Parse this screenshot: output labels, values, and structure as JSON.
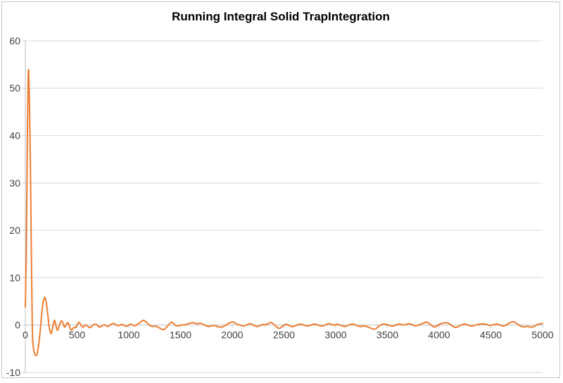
{
  "chart_data": {
    "type": "line",
    "title": "Running Integral Solid TrapIntegration",
    "xlabel": "",
    "ylabel": "",
    "xlim": [
      0,
      5000
    ],
    "ylim": [
      -10,
      60
    ],
    "xticks": [
      0,
      500,
      1000,
      1500,
      2000,
      2500,
      3000,
      3500,
      4000,
      4500,
      5000
    ],
    "yticks": [
      -10,
      0,
      10,
      20,
      30,
      40,
      50,
      60
    ],
    "grid": "horizontal",
    "legend": "none",
    "colors": {
      "line": "#ED7D31",
      "gridline": "#D9D9D9",
      "axis": "#BFBFBF",
      "tick_label": "#404040",
      "title": "#000000",
      "background": "#FFFFFF",
      "frame": "#C9C9C9"
    },
    "series": [
      {
        "name": "Running Integral",
        "color": "#ED7D31",
        "points": [
          [
            0,
            3.8
          ],
          [
            8,
            14
          ],
          [
            14,
            27
          ],
          [
            20,
            40
          ],
          [
            25,
            49
          ],
          [
            30,
            53.8
          ],
          [
            35,
            52
          ],
          [
            42,
            44
          ],
          [
            50,
            31
          ],
          [
            58,
            16
          ],
          [
            64,
            5
          ],
          [
            70,
            -2.5
          ],
          [
            78,
            -4.8
          ],
          [
            88,
            -6.0
          ],
          [
            100,
            -6.4
          ],
          [
            112,
            -6.2
          ],
          [
            122,
            -5.2
          ],
          [
            132,
            -3.6
          ],
          [
            142,
            -1.6
          ],
          [
            152,
            0.8
          ],
          [
            162,
            3.0
          ],
          [
            172,
            4.8
          ],
          [
            182,
            5.7
          ],
          [
            190,
            5.8
          ],
          [
            200,
            5.0
          ],
          [
            210,
            3.5
          ],
          [
            220,
            1.6
          ],
          [
            230,
            -0.3
          ],
          [
            240,
            -1.4
          ],
          [
            250,
            -1.8
          ],
          [
            260,
            -1.1
          ],
          [
            270,
            0.1
          ],
          [
            280,
            1.0
          ],
          [
            290,
            0.6
          ],
          [
            300,
            -0.5
          ],
          [
            310,
            -1.1
          ],
          [
            320,
            -0.7
          ],
          [
            332,
            0.2
          ],
          [
            342,
            0.7
          ],
          [
            352,
            0.9
          ],
          [
            364,
            0.4
          ],
          [
            378,
            -0.4
          ],
          [
            392,
            -0.1
          ],
          [
            405,
            0.5
          ],
          [
            418,
            0.3
          ],
          [
            432,
            -0.6
          ],
          [
            445,
            -1.1
          ],
          [
            458,
            -0.8
          ],
          [
            472,
            -0.5
          ],
          [
            488,
            -0.5
          ],
          [
            505,
            0.2
          ],
          [
            520,
            0.6
          ],
          [
            538,
            0.0
          ],
          [
            557,
            -0.45
          ],
          [
            580,
            0.0
          ],
          [
            600,
            -0.2
          ],
          [
            625,
            -0.55
          ],
          [
            650,
            -0.1
          ],
          [
            675,
            0.2
          ],
          [
            695,
            0.0
          ],
          [
            716,
            -0.45
          ],
          [
            740,
            -0.2
          ],
          [
            766,
            0.05
          ],
          [
            796,
            -0.3
          ],
          [
            825,
            0.1
          ],
          [
            852,
            0.35
          ],
          [
            875,
            0.1
          ],
          [
            898,
            -0.15
          ],
          [
            915,
            0.0
          ],
          [
            932,
            0.15
          ],
          [
            955,
            -0.1
          ],
          [
            977,
            -0.25
          ],
          [
            1000,
            0.0
          ],
          [
            1023,
            0.2
          ],
          [
            1040,
            0.0
          ],
          [
            1057,
            -0.15
          ],
          [
            1080,
            0.1
          ],
          [
            1105,
            0.5
          ],
          [
            1130,
            0.9
          ],
          [
            1148,
            1.0
          ],
          [
            1170,
            0.6
          ],
          [
            1195,
            0.1
          ],
          [
            1215,
            -0.2
          ],
          [
            1235,
            -0.3
          ],
          [
            1255,
            -0.2
          ],
          [
            1275,
            -0.35
          ],
          [
            1295,
            -0.6
          ],
          [
            1315,
            -0.85
          ],
          [
            1335,
            -0.95
          ],
          [
            1355,
            -0.7
          ],
          [
            1375,
            -0.2
          ],
          [
            1395,
            0.35
          ],
          [
            1412,
            0.6
          ],
          [
            1430,
            0.4
          ],
          [
            1450,
            0.0
          ],
          [
            1468,
            -0.2
          ],
          [
            1488,
            -0.1
          ],
          [
            1510,
            0.05
          ],
          [
            1532,
            0.0
          ],
          [
            1555,
            0.15
          ],
          [
            1578,
            0.3
          ],
          [
            1600,
            0.45
          ],
          [
            1623,
            0.5
          ],
          [
            1645,
            0.35
          ],
          [
            1668,
            0.3
          ],
          [
            1690,
            0.4
          ],
          [
            1712,
            0.25
          ],
          [
            1735,
            0.0
          ],
          [
            1758,
            -0.25
          ],
          [
            1780,
            -0.3
          ],
          [
            1802,
            -0.15
          ],
          [
            1825,
            -0.1
          ],
          [
            1848,
            -0.25
          ],
          [
            1870,
            -0.4
          ],
          [
            1892,
            -0.45
          ],
          [
            1912,
            -0.35
          ],
          [
            1932,
            -0.1
          ],
          [
            1955,
            0.25
          ],
          [
            1978,
            0.5
          ],
          [
            2000,
            0.65
          ],
          [
            2015,
            0.6
          ],
          [
            2035,
            0.35
          ],
          [
            2055,
            0.1
          ],
          [
            2075,
            0.0
          ],
          [
            2095,
            -0.15
          ],
          [
            2115,
            -0.2
          ],
          [
            2135,
            0.0
          ],
          [
            2155,
            0.2
          ],
          [
            2175,
            0.3
          ],
          [
            2195,
            0.1
          ],
          [
            2215,
            -0.1
          ],
          [
            2235,
            -0.3
          ],
          [
            2255,
            -0.25
          ],
          [
            2275,
            -0.05
          ],
          [
            2295,
            0.1
          ],
          [
            2315,
            0.05
          ],
          [
            2335,
            0.2
          ],
          [
            2355,
            0.4
          ],
          [
            2374,
            0.55
          ],
          [
            2392,
            0.35
          ],
          [
            2412,
            -0.05
          ],
          [
            2432,
            -0.45
          ],
          [
            2452,
            -0.7
          ],
          [
            2472,
            -0.5
          ],
          [
            2492,
            -0.15
          ],
          [
            2512,
            0.15
          ],
          [
            2532,
            0.1
          ],
          [
            2552,
            -0.1
          ],
          [
            2572,
            -0.3
          ],
          [
            2592,
            -0.3
          ],
          [
            2615,
            -0.1
          ],
          [
            2638,
            0.1
          ],
          [
            2660,
            0.2
          ],
          [
            2682,
            0.1
          ],
          [
            2705,
            -0.1
          ],
          [
            2728,
            -0.2
          ],
          [
            2750,
            -0.1
          ],
          [
            2772,
            0.1
          ],
          [
            2795,
            0.2
          ],
          [
            2818,
            0.1
          ],
          [
            2840,
            -0.1
          ],
          [
            2862,
            -0.2
          ],
          [
            2885,
            -0.1
          ],
          [
            2908,
            0.1
          ],
          [
            2930,
            0.3
          ],
          [
            2952,
            0.2
          ],
          [
            2975,
            0.0
          ],
          [
            2998,
            0.1
          ],
          [
            3020,
            0.15
          ],
          [
            3042,
            0.0
          ],
          [
            3065,
            -0.2
          ],
          [
            3088,
            -0.3
          ],
          [
            3110,
            -0.15
          ],
          [
            3132,
            0.05
          ],
          [
            3155,
            0.2
          ],
          [
            3178,
            0.15
          ],
          [
            3200,
            -0.05
          ],
          [
            3222,
            -0.25
          ],
          [
            3245,
            -0.3
          ],
          [
            3268,
            -0.2
          ],
          [
            3290,
            -0.25
          ],
          [
            3312,
            -0.4
          ],
          [
            3335,
            -0.6
          ],
          [
            3358,
            -0.8
          ],
          [
            3378,
            -0.85
          ],
          [
            3398,
            -0.6
          ],
          [
            3418,
            -0.25
          ],
          [
            3438,
            0.05
          ],
          [
            3458,
            0.2
          ],
          [
            3480,
            0.2
          ],
          [
            3502,
            0.05
          ],
          [
            3525,
            -0.1
          ],
          [
            3548,
            -0.2
          ],
          [
            3570,
            -0.1
          ],
          [
            3592,
            0.1
          ],
          [
            3615,
            0.2
          ],
          [
            3638,
            0.1
          ],
          [
            3660,
            0.0
          ],
          [
            3682,
            0.15
          ],
          [
            3705,
            0.3
          ],
          [
            3728,
            0.2
          ],
          [
            3750,
            0.0
          ],
          [
            3772,
            -0.15
          ],
          [
            3795,
            -0.05
          ],
          [
            3818,
            0.15
          ],
          [
            3840,
            0.35
          ],
          [
            3862,
            0.55
          ],
          [
            3880,
            0.6
          ],
          [
            3900,
            0.4
          ],
          [
            3920,
            0.05
          ],
          [
            3940,
            -0.3
          ],
          [
            3958,
            -0.4
          ],
          [
            3978,
            -0.2
          ],
          [
            3998,
            0.1
          ],
          [
            4020,
            0.3
          ],
          [
            4042,
            0.4
          ],
          [
            4062,
            0.5
          ],
          [
            4080,
            0.45
          ],
          [
            4100,
            0.25
          ],
          [
            4120,
            -0.05
          ],
          [
            4140,
            -0.35
          ],
          [
            4158,
            -0.5
          ],
          [
            4178,
            -0.4
          ],
          [
            4198,
            -0.15
          ],
          [
            4218,
            0.05
          ],
          [
            4240,
            0.2
          ],
          [
            4262,
            0.15
          ],
          [
            4285,
            -0.05
          ],
          [
            4308,
            -0.2
          ],
          [
            4330,
            -0.15
          ],
          [
            4352,
            0.0
          ],
          [
            4375,
            0.1
          ],
          [
            4398,
            0.2
          ],
          [
            4420,
            0.3
          ],
          [
            4442,
            0.2
          ],
          [
            4465,
            0.05
          ],
          [
            4488,
            -0.05
          ],
          [
            4510,
            0.0
          ],
          [
            4532,
            0.1
          ],
          [
            4555,
            0.2
          ],
          [
            4578,
            0.1
          ],
          [
            4600,
            -0.1
          ],
          [
            4622,
            -0.2
          ],
          [
            4645,
            0.0
          ],
          [
            4668,
            0.3
          ],
          [
            4690,
            0.55
          ],
          [
            4710,
            0.7
          ],
          [
            4730,
            0.6
          ],
          [
            4752,
            0.3
          ],
          [
            4775,
            -0.05
          ],
          [
            4798,
            -0.3
          ],
          [
            4818,
            -0.4
          ],
          [
            4840,
            -0.3
          ],
          [
            4862,
            -0.3
          ],
          [
            4885,
            -0.45
          ],
          [
            4905,
            -0.4
          ],
          [
            4928,
            -0.15
          ],
          [
            4950,
            0.1
          ],
          [
            4972,
            0.25
          ],
          [
            4990,
            0.3
          ],
          [
            5000,
            0.3
          ]
        ]
      }
    ]
  }
}
